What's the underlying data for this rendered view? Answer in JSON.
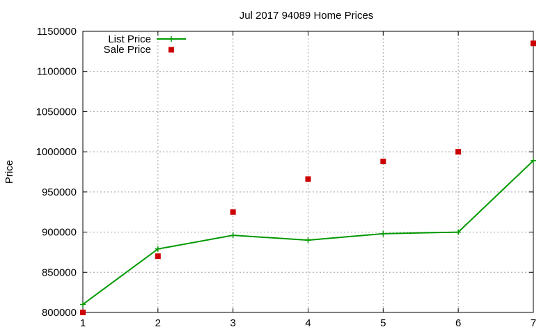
{
  "chart_data": {
    "type": "line",
    "title": "Jul 2017 94089 Home Prices",
    "xlabel": "",
    "ylabel": "Price",
    "xlim": [
      1,
      7
    ],
    "ylim": [
      800000,
      1150000
    ],
    "x_ticks": [
      "1",
      "2",
      "3",
      "4",
      "5",
      "6",
      "7"
    ],
    "y_ticks": [
      "800000",
      "850000",
      "900000",
      "950000",
      "1000000",
      "1050000",
      "1100000",
      "1150000"
    ],
    "grid": true,
    "legend_position": "top-left",
    "x": [
      1,
      2,
      3,
      4,
      5,
      6,
      7
    ],
    "series": [
      {
        "name": "List Price",
        "style": "line-with-plus-markers",
        "color": "#009900",
        "values": [
          810000,
          879000,
          896000,
          890000,
          898000,
          900000,
          989000
        ]
      },
      {
        "name": "Sale Price",
        "style": "square-points",
        "color": "#cc0000",
        "values": [
          800000,
          870000,
          925000,
          966000,
          988000,
          1000000,
          1135000
        ]
      }
    ]
  }
}
